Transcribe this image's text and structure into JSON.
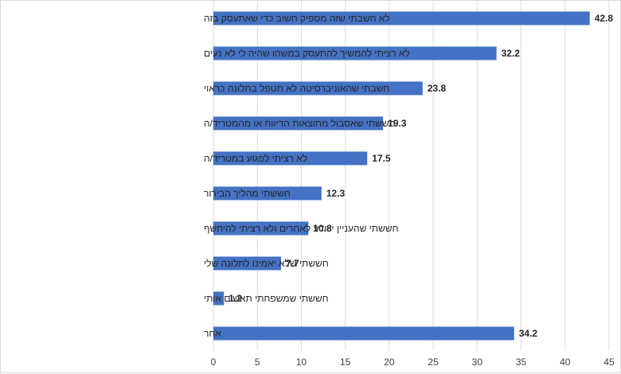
{
  "chart_data": {
    "type": "bar",
    "orientation": "horizontal",
    "categories": [
      "לא חשבתי שזה מספיק חשוב כדי שאתעסק בזה",
      "לא רציתי להמשיך להתעסק במשהו שהיה לי לא נעים",
      "חשבתי שהאוניברסיטה לא תטפל בתלונה כראוי",
      "חששתי שאסבול מתוצאות הדיווח או מהמטריד/ה",
      "לא רציתי לפגוע במטריד/ה",
      "חששתי מהליך הבירור",
      "חששתי שהעניין ייוודע לאחרים ולא רציתי להיחשף",
      "חששתי שלא יאמינו לתלונה שלי",
      "חששתי שמשפחתי תאשים אותי",
      "אחר"
    ],
    "values": [
      42.8,
      32.2,
      23.8,
      19.3,
      17.5,
      12.3,
      10.8,
      7.7,
      1.2,
      34.2
    ],
    "value_labels": [
      "42.8",
      "32.2",
      "23.8",
      "19.3",
      "17.5",
      "12.3",
      "10.8",
      "7.7",
      "1.2",
      "34.2"
    ],
    "xlim": [
      0,
      45
    ],
    "xticks": [
      0,
      5,
      10,
      15,
      20,
      25,
      30,
      35,
      40,
      45
    ],
    "title": "",
    "xlabel": "",
    "ylabel": "",
    "grid": "vertical",
    "legend": "none",
    "bar_color": "#4472c4"
  }
}
